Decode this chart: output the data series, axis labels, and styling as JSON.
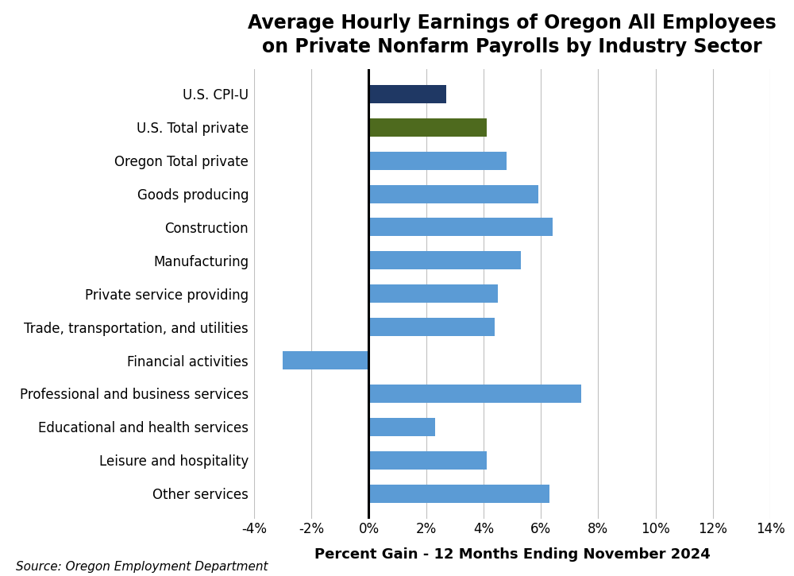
{
  "title": "Average Hourly Earnings of Oregon All Employees\non Private Nonfarm Payrolls by Industry Sector",
  "categories": [
    "Other services",
    "Leisure and hospitality",
    "Educational and health services",
    "Professional and business services",
    "Financial activities",
    "Trade, transportation, and utilities",
    "Private service providing",
    "Manufacturing",
    "Construction",
    "Goods producing",
    "Oregon Total private",
    "U.S. Total private",
    "U.S. CPI-U"
  ],
  "values": [
    6.3,
    4.1,
    2.3,
    7.4,
    -3.0,
    4.4,
    4.5,
    5.3,
    6.4,
    5.9,
    4.8,
    4.1,
    2.7
  ],
  "bar_colors": [
    "#5B9BD5",
    "#5B9BD5",
    "#5B9BD5",
    "#5B9BD5",
    "#5B9BD5",
    "#5B9BD5",
    "#5B9BD5",
    "#5B9BD5",
    "#5B9BD5",
    "#5B9BD5",
    "#5B9BD5",
    "#4E6A1E",
    "#1F3864"
  ],
  "xlabel": "Percent Gain - 12 Months Ending November 2024",
  "xlim": [
    -4,
    14
  ],
  "xtick_values": [
    -4,
    -2,
    0,
    2,
    4,
    6,
    8,
    10,
    12,
    14
  ],
  "source_text": "Source: Oregon Employment Department",
  "background_color": "#ffffff",
  "title_fontsize": 17,
  "xlabel_fontsize": 13,
  "label_fontsize": 12,
  "tick_fontsize": 12,
  "source_fontsize": 11,
  "bar_height": 0.55
}
